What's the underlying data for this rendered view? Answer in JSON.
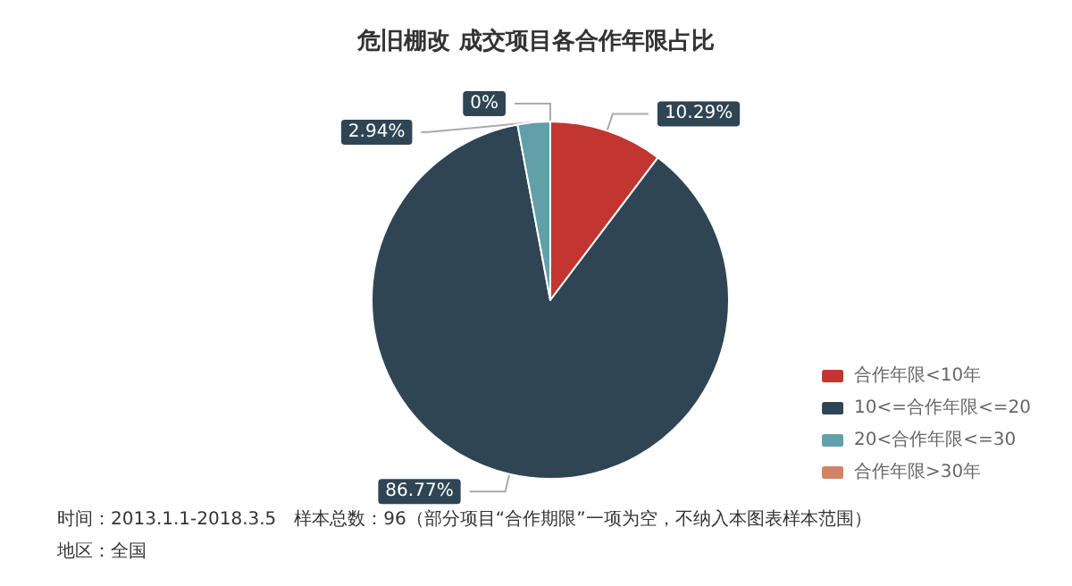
{
  "chart_data": {
    "type": "pie",
    "title": "危旧棚改 成交项目各合作年限占比",
    "categories": [
      "合作年限<10年",
      "10<=合作年限<=20",
      "20<合作年限<=30",
      "合作年限>30年"
    ],
    "values": [
      10.29,
      86.77,
      2.94,
      0
    ],
    "value_labels": [
      "10.29%",
      "86.77%",
      "2.94%",
      "0%"
    ],
    "colors": [
      "#c23531",
      "#2f4554",
      "#61a0a8",
      "#d48265"
    ],
    "legend": "bottom right",
    "annotations": [
      "时间：2013.1.1-2018.3.5　样本总数：96（部分项目“合作期限”一项为空，不纳入本图表样本范围）",
      "地区：全国"
    ]
  }
}
